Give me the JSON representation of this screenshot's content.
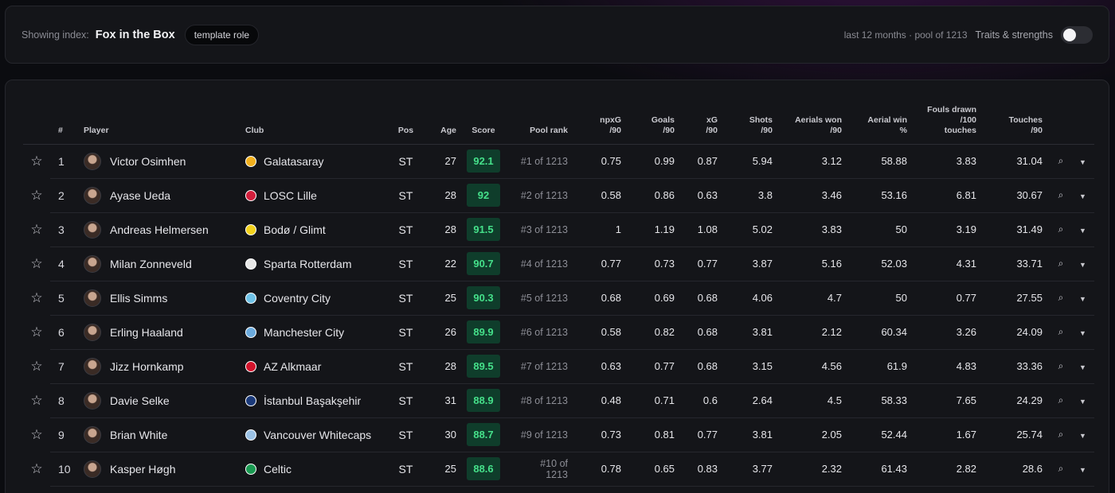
{
  "header": {
    "showing_label": "Showing index:",
    "index_name": "Fox in the Box",
    "role_chip": "template role",
    "meta": "last 12 months · pool of 1213",
    "traits_label": "Traits & strengths"
  },
  "columns": {
    "num": "#",
    "player": "Player",
    "club": "Club",
    "pos": "Pos",
    "age": "Age",
    "score": "Score",
    "pool_rank": "Pool rank",
    "npxg": [
      "npxG",
      "/90"
    ],
    "goals": [
      "Goals",
      "/90"
    ],
    "xg": [
      "xG",
      "/90"
    ],
    "shots": [
      "Shots",
      "/90"
    ],
    "aerials_won": [
      "Aerials won",
      "/90"
    ],
    "aerial_win": [
      "Aerial win",
      "%"
    ],
    "fouls_drawn": [
      "Fouls drawn",
      "/100",
      "touches"
    ],
    "touches": [
      "Touches",
      "/90"
    ]
  },
  "icons": {
    "star": "star-icon",
    "search": "search-icon",
    "expand": "chevron-down-icon"
  },
  "colors": {
    "score_bg": "#0f3d2b",
    "score_text": "#45e08a"
  },
  "rows": [
    {
      "rank": "1",
      "name": "Victor Osimhen",
      "club": "Galatasaray",
      "badge": "#f2b01e",
      "pos": "ST",
      "age": "27",
      "score": "92.1",
      "pool_rank": [
        "#1 of 1213"
      ],
      "npxg": "0.75",
      "goals": "0.99",
      "xg": "0.87",
      "shots": "5.94",
      "aerials_won": "3.12",
      "aerial_win": "58.88",
      "fouls": "3.83",
      "touches": "31.04"
    },
    {
      "rank": "2",
      "name": "Ayase Ueda",
      "club": "LOSC Lille",
      "badge": "#d21f3c",
      "pos": "ST",
      "age": "28",
      "score": "92",
      "pool_rank": [
        "#2 of 1213"
      ],
      "npxg": "0.58",
      "goals": "0.86",
      "xg": "0.63",
      "shots": "3.8",
      "aerials_won": "3.46",
      "aerial_win": "53.16",
      "fouls": "6.81",
      "touches": "30.67"
    },
    {
      "rank": "3",
      "name": "Andreas Helmersen",
      "club": "Bodø / Glimt",
      "badge": "#f3d21c",
      "pos": "ST",
      "age": "28",
      "score": "91.5",
      "pool_rank": [
        "#3 of 1213"
      ],
      "npxg": "1",
      "goals": "1.19",
      "xg": "1.08",
      "shots": "5.02",
      "aerials_won": "3.83",
      "aerial_win": "50",
      "fouls": "3.19",
      "touches": "31.49"
    },
    {
      "rank": "4",
      "name": "Milan Zonneveld",
      "club": "Sparta Rotterdam",
      "badge": "#e8e8e8",
      "pos": "ST",
      "age": "22",
      "score": "90.7",
      "pool_rank": [
        "#4 of 1213"
      ],
      "npxg": "0.77",
      "goals": "0.73",
      "xg": "0.77",
      "shots": "3.87",
      "aerials_won": "5.16",
      "aerial_win": "52.03",
      "fouls": "4.31",
      "touches": "33.71"
    },
    {
      "rank": "5",
      "name": "Ellis Simms",
      "club": "Coventry City",
      "badge": "#6fc3e8",
      "pos": "ST",
      "age": "25",
      "score": "90.3",
      "pool_rank": [
        "#5 of 1213"
      ],
      "npxg": "0.68",
      "goals": "0.69",
      "xg": "0.68",
      "shots": "4.06",
      "aerials_won": "4.7",
      "aerial_win": "50",
      "fouls": "0.77",
      "touches": "27.55"
    },
    {
      "rank": "6",
      "name": "Erling Haaland",
      "club": "Manchester City",
      "badge": "#6cabdd",
      "pos": "ST",
      "age": "26",
      "score": "89.9",
      "pool_rank": [
        "#6 of 1213"
      ],
      "npxg": "0.58",
      "goals": "0.82",
      "xg": "0.68",
      "shots": "3.81",
      "aerials_won": "2.12",
      "aerial_win": "60.34",
      "fouls": "3.26",
      "touches": "24.09"
    },
    {
      "rank": "7",
      "name": "Jizz Hornkamp",
      "club": "AZ Alkmaar",
      "badge": "#d2132b",
      "pos": "ST",
      "age": "28",
      "score": "89.5",
      "pool_rank": [
        "#7 of 1213"
      ],
      "npxg": "0.63",
      "goals": "0.77",
      "xg": "0.68",
      "shots": "3.15",
      "aerials_won": "4.56",
      "aerial_win": "61.9",
      "fouls": "4.83",
      "touches": "33.36"
    },
    {
      "rank": "8",
      "name": "Davie Selke",
      "club": "İstanbul Başakşehir",
      "badge": "#1b3a7a",
      "pos": "ST",
      "age": "31",
      "score": "88.9",
      "pool_rank": [
        "#8 of 1213"
      ],
      "npxg": "0.48",
      "goals": "0.71",
      "xg": "0.6",
      "shots": "2.64",
      "aerials_won": "4.5",
      "aerial_win": "58.33",
      "fouls": "7.65",
      "touches": "24.29"
    },
    {
      "rank": "9",
      "name": "Brian White",
      "club": "Vancouver Whitecaps",
      "badge": "#9bc2e6",
      "pos": "ST",
      "age": "30",
      "score": "88.7",
      "pool_rank": [
        "#9 of 1213"
      ],
      "npxg": "0.73",
      "goals": "0.81",
      "xg": "0.77",
      "shots": "3.81",
      "aerials_won": "2.05",
      "aerial_win": "52.44",
      "fouls": "1.67",
      "touches": "25.74"
    },
    {
      "rank": "10",
      "name": "Kasper Høgh",
      "club": "Celtic",
      "badge": "#1a9a52",
      "pos": "ST",
      "age": "25",
      "score": "88.6",
      "pool_rank": [
        "#10 of",
        "1213"
      ],
      "npxg": "0.78",
      "goals": "0.65",
      "xg": "0.83",
      "shots": "3.77",
      "aerials_won": "2.32",
      "aerial_win": "61.43",
      "fouls": "2.82",
      "touches": "28.6"
    }
  ]
}
